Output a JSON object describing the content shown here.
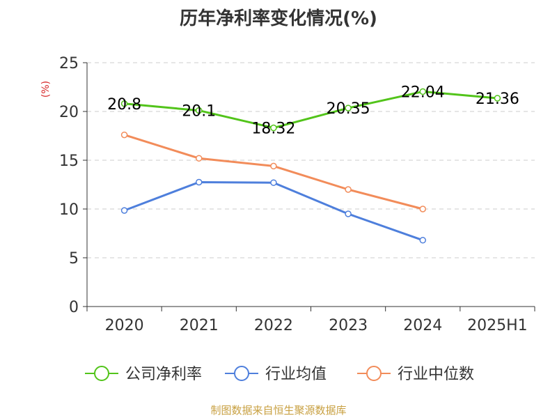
{
  "chart_data": {
    "type": "line",
    "title": "历年净利率变化情况(%)",
    "ylabel": "(%)",
    "xlabel": "",
    "categories": [
      "2020",
      "2021",
      "2022",
      "2023",
      "2024",
      "2025H1"
    ],
    "ylim": [
      0,
      25
    ],
    "yticks": [
      0,
      5,
      10,
      15,
      20,
      25
    ],
    "grid": true,
    "legend_position": "bottom",
    "series": [
      {
        "name": "公司净利率",
        "color": "#52c41a",
        "values": [
          20.8,
          20.1,
          18.32,
          20.35,
          22.04,
          21.36
        ],
        "labels": [
          "20.8",
          "20.1",
          "18.32",
          "20.35",
          "22.04",
          "21.36"
        ]
      },
      {
        "name": "行业均值",
        "color": "#4e7fdc",
        "values": [
          9.85,
          12.75,
          12.7,
          9.5,
          6.8,
          null
        ]
      },
      {
        "name": "行业中位数",
        "color": "#f28c5a",
        "values": [
          17.6,
          15.2,
          14.4,
          12.0,
          10.0,
          null
        ]
      }
    ]
  },
  "source_note": "制图数据来自恒生聚源数据库"
}
